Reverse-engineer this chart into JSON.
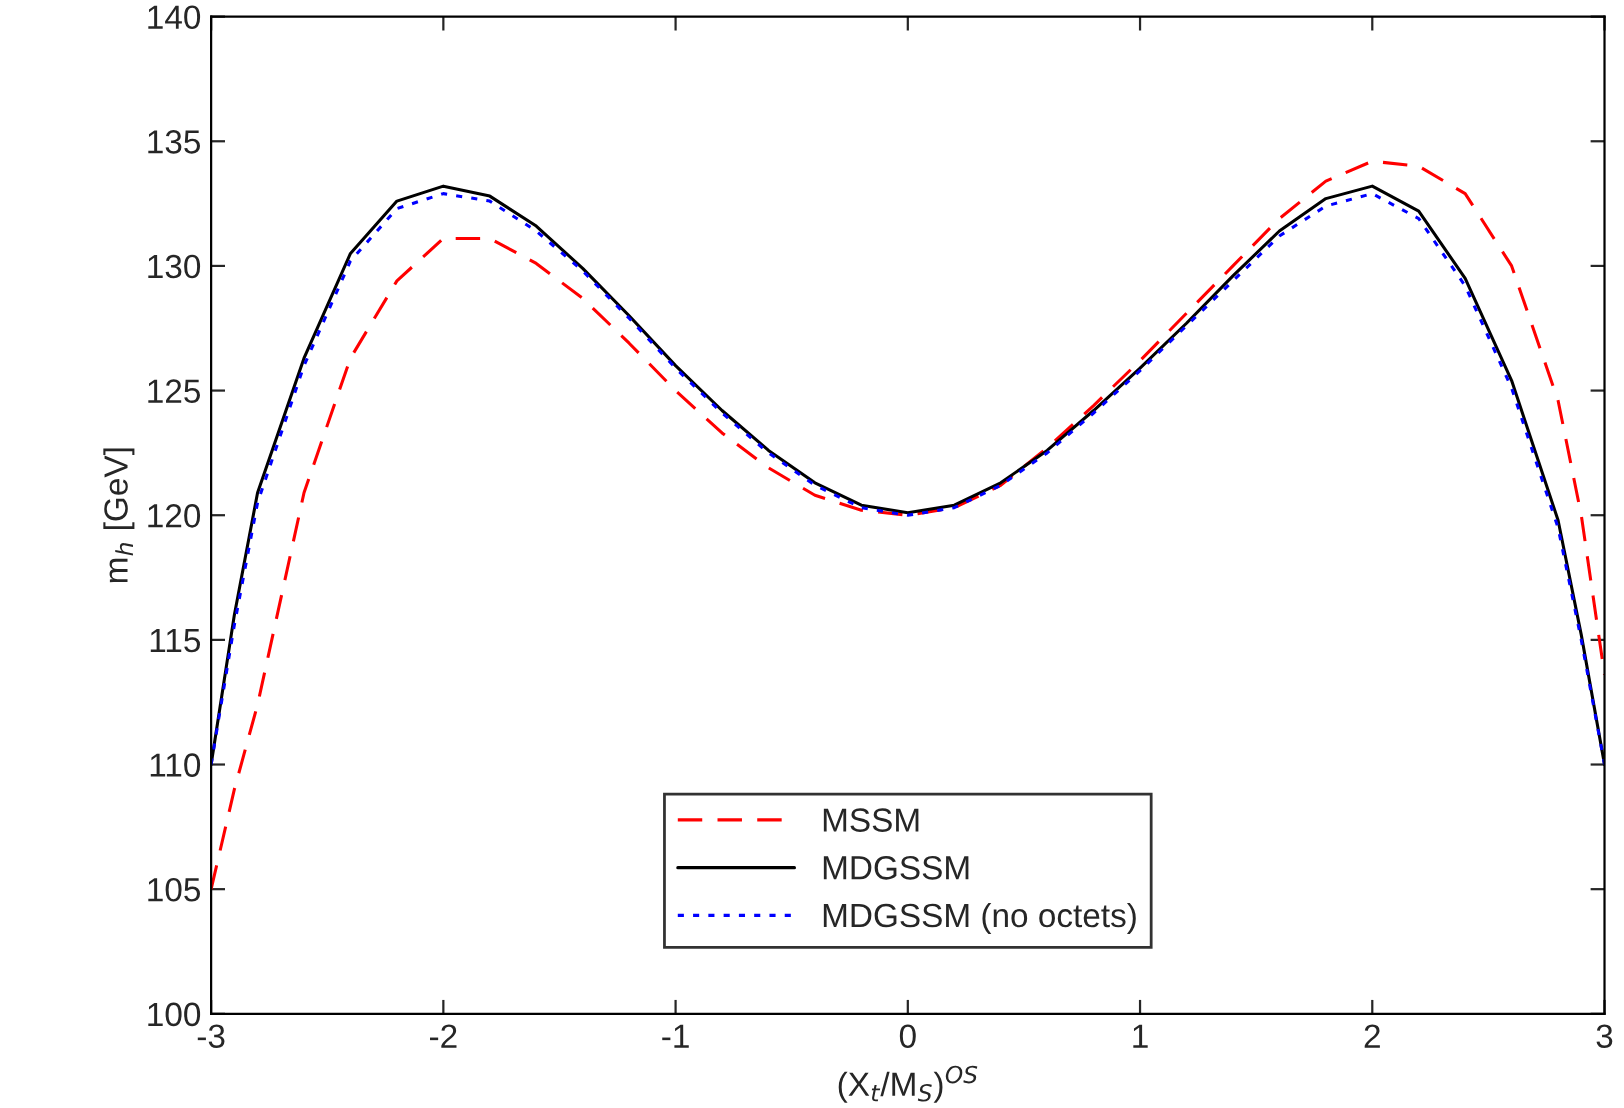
{
  "chart_data": {
    "type": "line",
    "xlabel": "(X$_{t}$/M$_{S}$)$^{OS}$",
    "ylabel": "m$_{h}$ [GeV]",
    "xlim": [
      -3,
      3
    ],
    "xticks": [
      -3,
      -2,
      -1,
      0,
      1,
      2,
      3
    ],
    "ylim": [
      100,
      140
    ],
    "yticks": [
      100,
      105,
      110,
      115,
      120,
      125,
      130,
      135,
      140
    ],
    "grid": false,
    "legend": "bottom",
    "marker": "none",
    "x": [
      -3,
      -2.9,
      -2.8,
      -2.6,
      -2.4,
      -2.2,
      -2,
      -1.8,
      -1.6,
      -1.4,
      -1.2,
      -1,
      -0.8,
      -0.6,
      -0.4,
      -0.2,
      0,
      0.2,
      0.4,
      0.6,
      0.8,
      1,
      1.2,
      1.4,
      1.6,
      1.8,
      2,
      2.2,
      2.4,
      2.6,
      2.8,
      2.9,
      3
    ],
    "series": [
      {
        "name": "MSSM",
        "color": "#ff0000",
        "line_style": "dashed",
        "values": [
          105,
          109,
          112.4,
          120.9,
          126.3,
          129.4,
          131.1,
          131.1,
          130.1,
          128.7,
          126.9,
          125,
          123.3,
          121.9,
          120.8,
          120.2,
          120,
          120.3,
          121.2,
          122.7,
          124.4,
          126.2,
          128.1,
          130,
          131.9,
          133.4,
          134.2,
          134,
          132.9,
          130,
          124.6,
          120,
          113.6
        ]
      },
      {
        "name": "MDGSSM",
        "color": "#000000",
        "line_style": "solid",
        "values": [
          110,
          116,
          120.9,
          126.3,
          130.5,
          132.6,
          133.2,
          132.8,
          131.6,
          129.9,
          128,
          126,
          124.2,
          122.6,
          121.3,
          120.4,
          120.1,
          120.4,
          121.3,
          122.6,
          124.2,
          125.9,
          127.7,
          129.6,
          131.4,
          132.7,
          133.2,
          132.2,
          129.5,
          125.4,
          119.8,
          115.2,
          110
        ]
      },
      {
        "name": "MDGSSM (no octets)",
        "color": "#0000ff",
        "line_style": "dotted",
        "values": [
          110,
          115.6,
          120.5,
          126,
          130.2,
          132.3,
          132.9,
          132.6,
          131.4,
          129.8,
          127.9,
          125.9,
          124.1,
          122.5,
          121.2,
          120.3,
          120,
          120.3,
          121.2,
          122.5,
          124.1,
          125.8,
          127.6,
          129.4,
          131.2,
          132.4,
          132.9,
          131.9,
          129.2,
          125.1,
          119.5,
          115,
          110
        ]
      }
    ]
  }
}
